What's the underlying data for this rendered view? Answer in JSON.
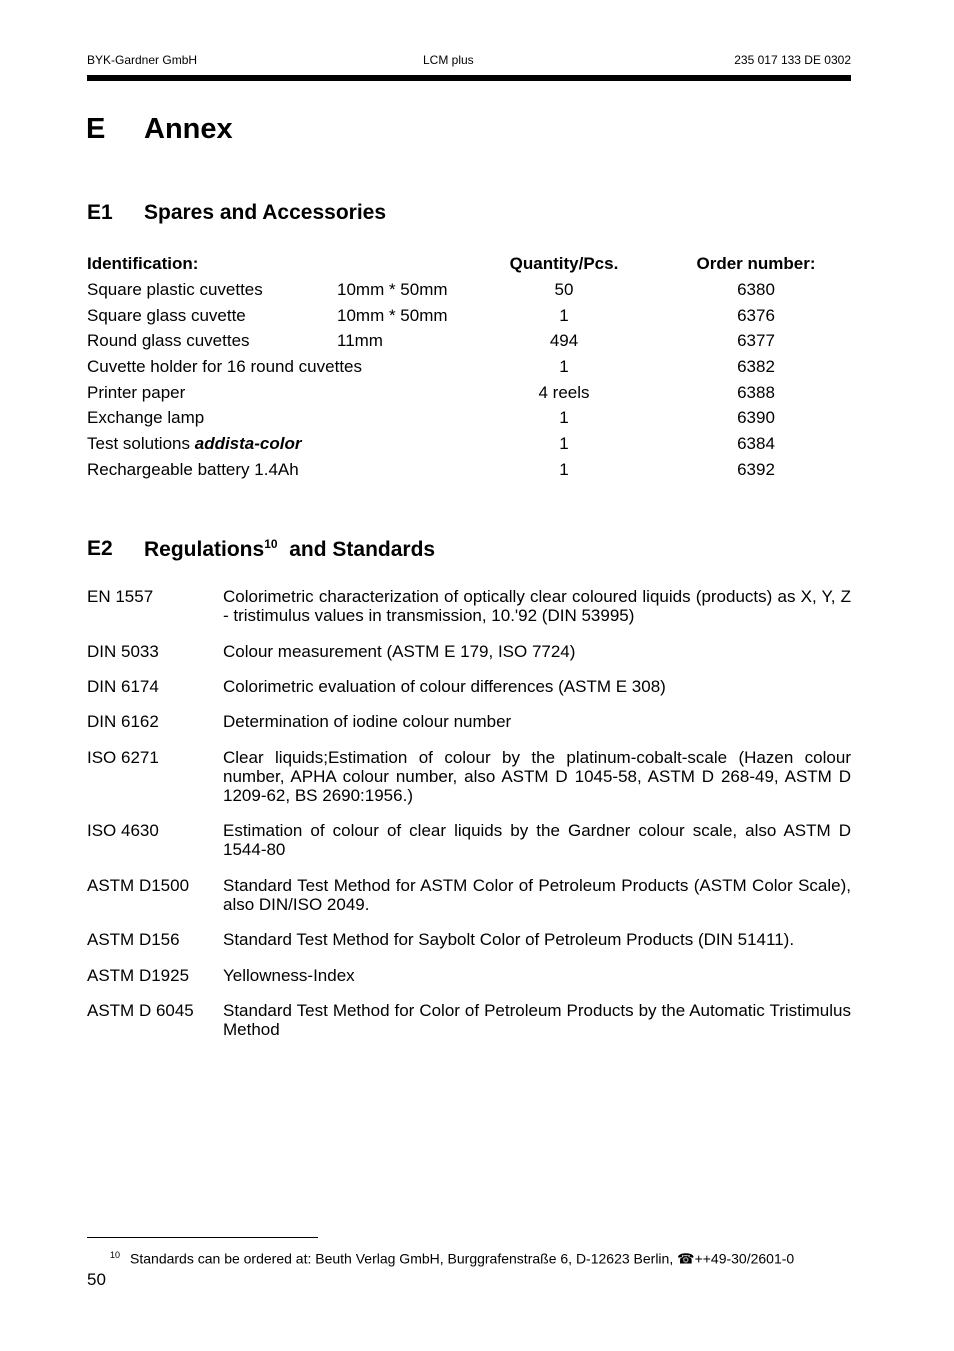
{
  "header": {
    "left": "BYK-Gardner  GmbH",
    "center": "LCM plus",
    "right": "235 017 133 DE 0302"
  },
  "chapter": {
    "number": "E",
    "title": "Annex"
  },
  "section1": {
    "number": "E1",
    "title": "Spares and Accessories",
    "columns": [
      "Identification:",
      "Quantity/Pcs.",
      "Order  number:"
    ],
    "rows": [
      {
        "name": "Square plastic cuvettes",
        "size": "10mm * 50mm",
        "qty": "50",
        "order": "6380"
      },
      {
        "name": "Square glass cuvette",
        "size": "10mm * 50mm",
        "qty": "1",
        "order": "6376"
      },
      {
        "name": "Round glass cuvettes",
        "size": "11mm",
        "qty": "494",
        "order": "6377"
      },
      {
        "name": "Cuvette holder for 16 round cuvettes",
        "size": "",
        "qty": "1",
        "order": "6382"
      },
      {
        "name": "Printer paper",
        "size": "",
        "qty": "4 reels",
        "order": "6388"
      },
      {
        "name": "Exchange lamp",
        "size": "",
        "qty": "1",
        "order": "6390"
      },
      {
        "name": "Test solutions ",
        "name_emphasis": "addista-color",
        "size": "",
        "qty": "1",
        "order": "6384"
      },
      {
        "name": "Rechargeable battery 1.4Ah",
        "size": "",
        "qty": "1",
        "order": "6392"
      }
    ]
  },
  "section2": {
    "number": "E2",
    "title": "Regulations",
    "footnote_ref": "10",
    "title_rest": "and Standards",
    "standards": [
      {
        "code": "EN 1557",
        "desc": "Colorimetric characterization of optically clear coloured liquids (products) as X, Y, Z - tristimulus values in transmission, 10.'92 (DIN 53995)"
      },
      {
        "code": "DIN 5033",
        "desc": "Colour measurement (ASTM E 179, ISO 7724)"
      },
      {
        "code": "DIN 6174",
        "desc": "Colorimetric evaluation of colour differences (ASTM E 308)"
      },
      {
        "code": "DIN 6162",
        "desc": "Determination of iodine colour number"
      },
      {
        "code": "ISO 6271",
        "desc": "Clear liquids;Estimation of colour by the platinum-cobalt-scale (Hazen colour number, APHA colour number, also ASTM D 1045-58, ASTM D 268-49, ASTM D 1209-62, BS 2690:1956.)"
      },
      {
        "code": "ISO 4630",
        "desc": "Estimation of colour of clear liquids by the Gardner colour scale, also ASTM D 1544-80"
      },
      {
        "code": "ASTM D1500",
        "desc": "Standard Test Method for ASTM Color of Petroleum Products (ASTM Color Scale), also DIN/ISO 2049."
      },
      {
        "code": "ASTM D156",
        "desc": "Standard Test Method for Saybolt Color of Petroleum Products (DIN 51411)."
      },
      {
        "code": "ASTM D1925",
        "desc": "Yellowness-Index"
      },
      {
        "code": "ASTM D 6045",
        "desc": "Standard Test Method for Color of Petroleum Products by the Automatic Tristimulus Method"
      }
    ]
  },
  "footnote": {
    "number": "10",
    "text": "Standards can be ordered at: Beuth Verlag GmbH, Burggrafenstraße 6, D-12623 Berlin, ",
    "phone_icon": "telephone-icon",
    "phone": "++49-30/2601-0"
  },
  "page_number": "50"
}
